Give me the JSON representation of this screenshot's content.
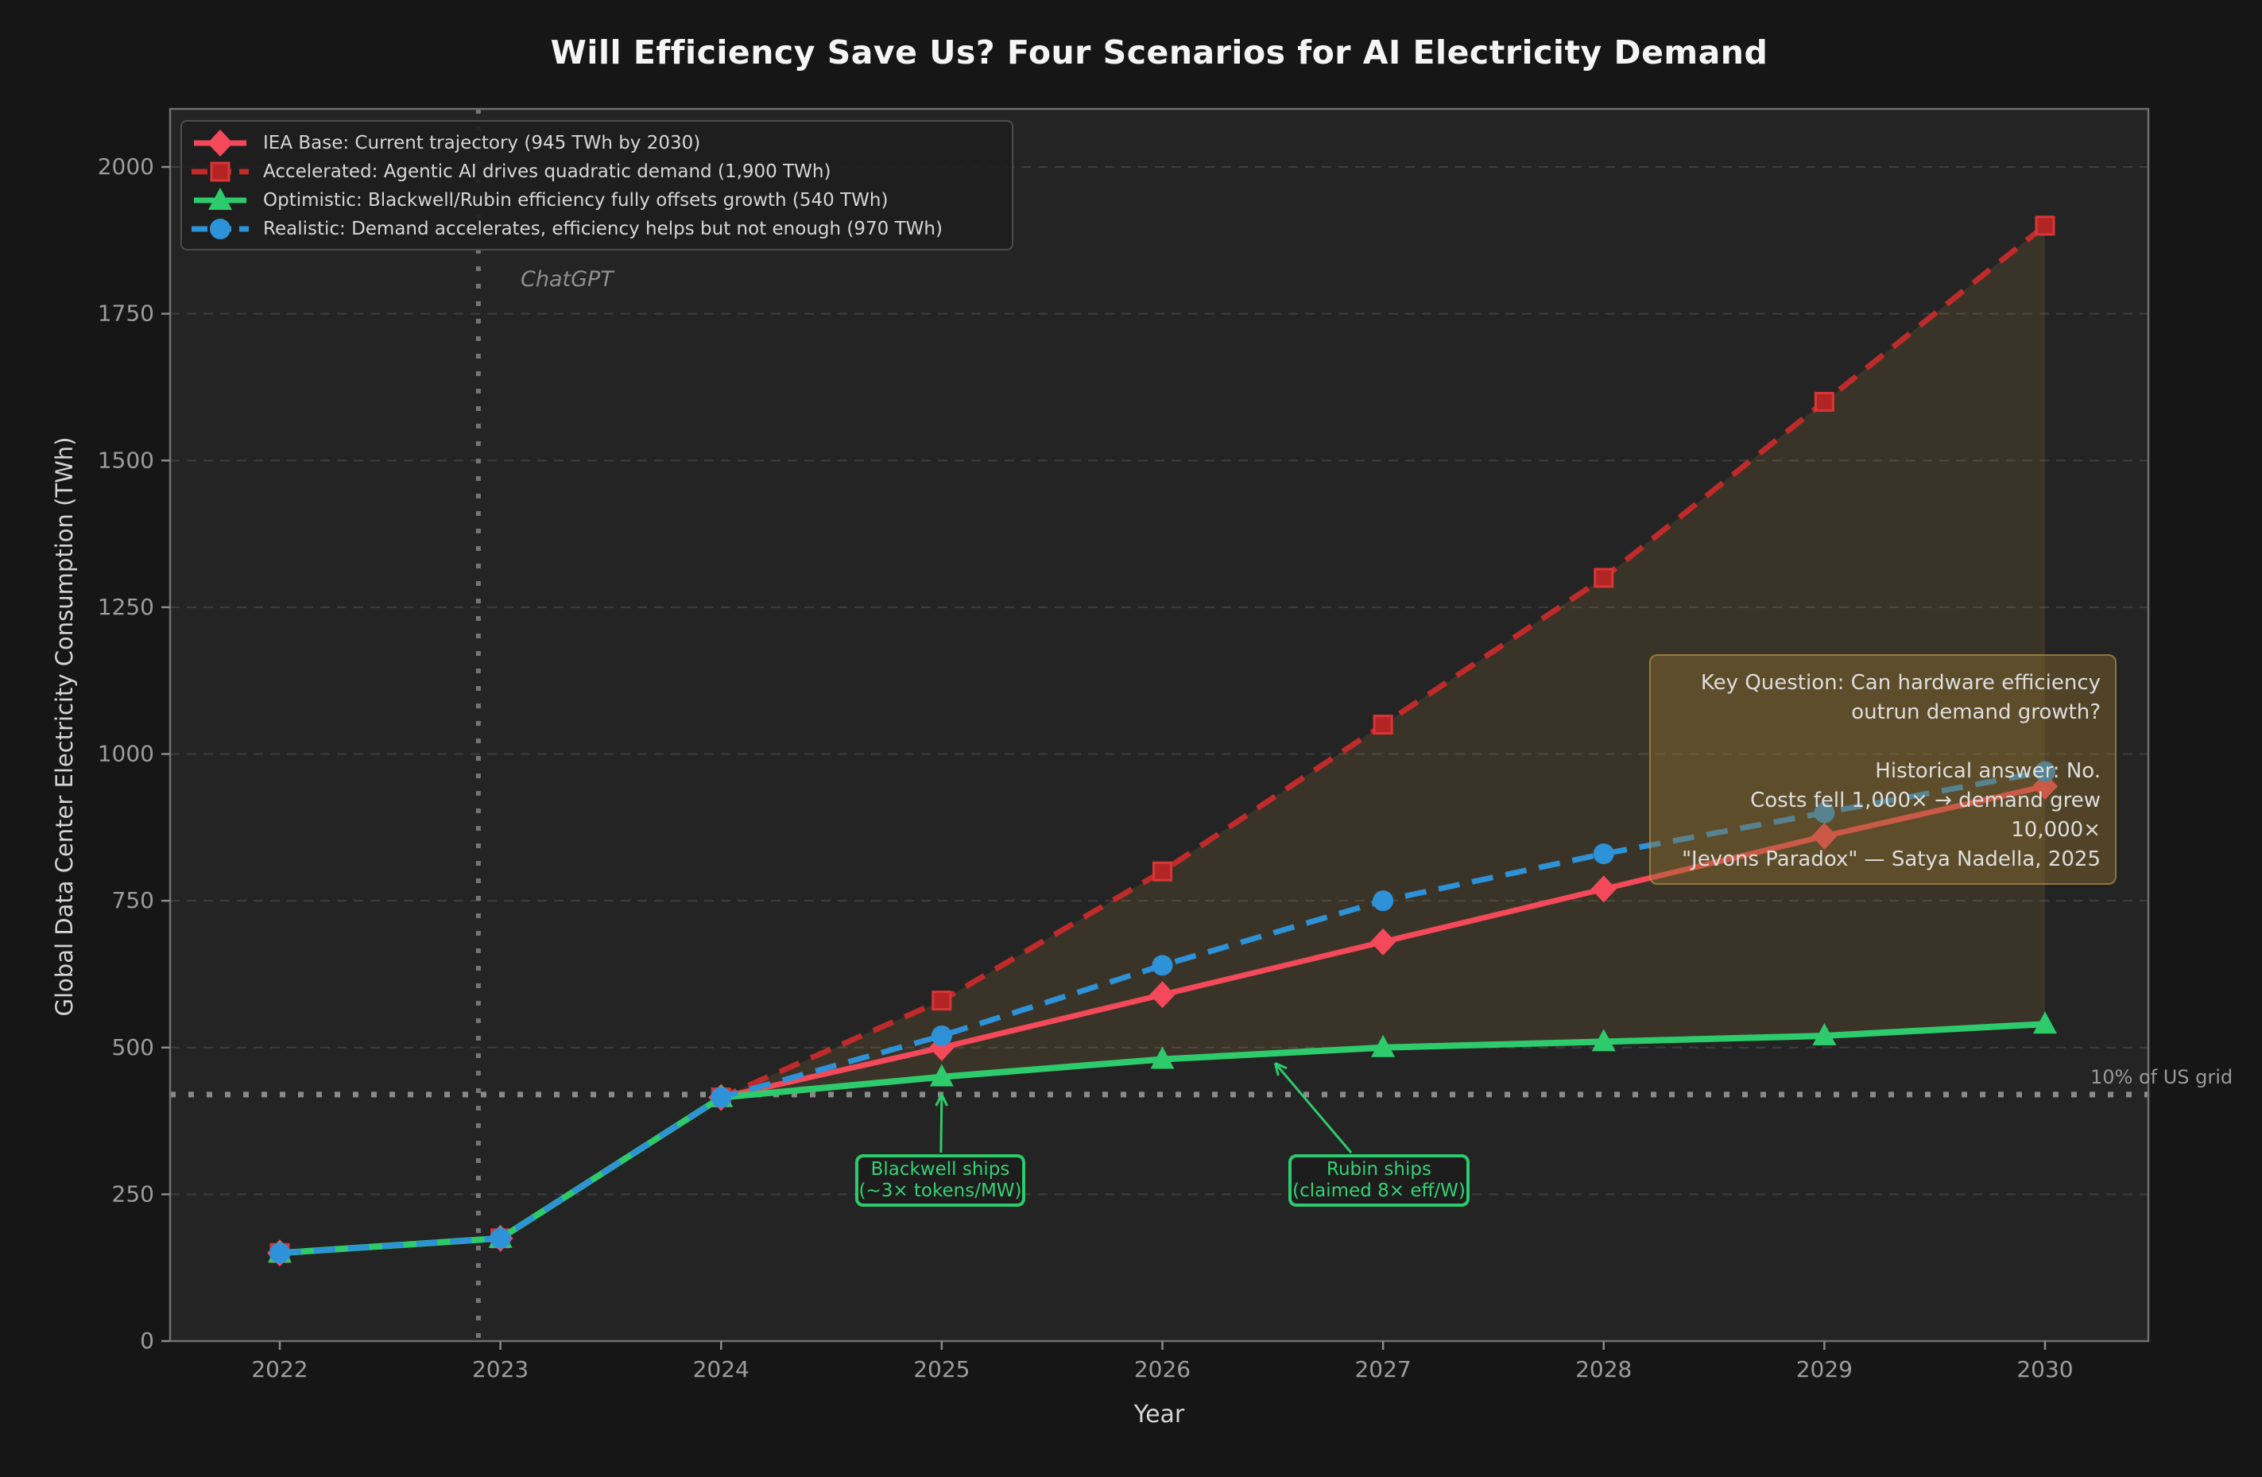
{
  "figure": {
    "title": "Will Efficiency Save Us? Four Scenarios for AI Electricity Demand"
  },
  "chart_data": {
    "type": "line",
    "title": "Will Efficiency Save Us? Four Scenarios for AI Electricity Demand",
    "xlabel": "Year",
    "ylabel": "Global Data Center Electricity Consumption (TWh)",
    "x": [
      2022,
      2023,
      2024,
      2025,
      2026,
      2027,
      2028,
      2029,
      2030
    ],
    "ylim": [
      0,
      2000
    ],
    "yticks": [
      0,
      250,
      500,
      750,
      1000,
      1250,
      1500,
      1750,
      2000
    ],
    "grid": "horizontal-dashed",
    "legend_position": "upper-left",
    "series": [
      {
        "name": "IEA Base: Current trajectory (945 TWh by 2030)",
        "color": "#f4495a",
        "line_style": "solid",
        "marker": "diamond",
        "values": [
          150,
          175,
          415,
          500,
          590,
          680,
          770,
          860,
          945
        ]
      },
      {
        "name": "Accelerated: Agentic AI drives quadratic demand (1,900 TWh)",
        "color": "#bf2a2a",
        "line_style": "dashed",
        "marker": "square",
        "values": [
          150,
          175,
          415,
          580,
          800,
          1050,
          1300,
          1600,
          1900
        ]
      },
      {
        "name": "Optimistic: Blackwell/Rubin efficiency fully offsets growth (540 TWh)",
        "color": "#2dcb6c",
        "line_style": "solid",
        "marker": "triangle",
        "values": [
          150,
          175,
          415,
          450,
          480,
          500,
          510,
          520,
          540
        ]
      },
      {
        "name": "Realistic: Demand accelerates, efficiency helps but not enough (970 TWh)",
        "color": "#2e92d8",
        "line_style": "dashed",
        "marker": "circle",
        "values": [
          150,
          175,
          415,
          520,
          640,
          750,
          830,
          900,
          970
        ]
      }
    ],
    "reference_lines": {
      "vertical": {
        "x": 2022.9,
        "label": "ChatGPT"
      },
      "horizontal": {
        "y": 420,
        "label": "10% of US grid"
      }
    },
    "shaded_band": {
      "between": [
        "Accelerated",
        "Optimistic"
      ],
      "x_range": [
        2024,
        2030
      ],
      "color": "rgba(205,160,70,0.13)"
    },
    "annotations": {
      "blackwell": {
        "text": "Blackwell ships\n(~3× tokens/MW)",
        "arrow_to": {
          "x": 2025,
          "y": 450
        }
      },
      "rubin": {
        "text": "Rubin ships\n(claimed 8× eff/W)",
        "arrow_to": {
          "x": 2026.5,
          "y": 487
        }
      },
      "key_question": {
        "text": "Key Question: Can hardware efficiency\noutrun demand growth?\n\nHistorical answer: No.\nCosts fell 1,000× → demand grew 10,000×\n\"Jevons Paradox\" — Satya Nadella, 2025"
      }
    }
  }
}
